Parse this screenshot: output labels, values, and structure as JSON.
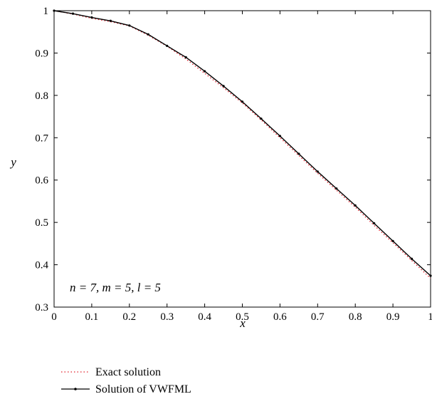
{
  "chart_data": {
    "type": "line",
    "xlabel": "x",
    "ylabel": "y",
    "xlim": [
      0,
      1
    ],
    "ylim": [
      0.3,
      1
    ],
    "xticks": [
      "0",
      "0.1",
      "0.2",
      "0.3",
      "0.4",
      "0.5",
      "0.6",
      "0.7",
      "0.8",
      "0.9",
      "1"
    ],
    "yticks": [
      "0.3",
      "0.4",
      "0.5",
      "0.6",
      "0.7",
      "0.8",
      "0.9",
      "1"
    ],
    "xtick_values": [
      0,
      0.1,
      0.2,
      0.3,
      0.4,
      0.5,
      0.6,
      0.7,
      0.8,
      0.9,
      1
    ],
    "ytick_values": [
      0.3,
      0.4,
      0.5,
      0.6,
      0.7,
      0.8,
      0.9,
      1
    ],
    "grid": false,
    "annotation": "n = 7, m = 5, l = 5",
    "legend_position": "below",
    "series": [
      {
        "name": "Exact solution",
        "style": "dotted",
        "color": "#e0202a",
        "x": [
          0,
          0.05,
          0.1,
          0.15,
          0.2,
          0.25,
          0.3,
          0.35,
          0.4,
          0.45,
          0.5,
          0.55,
          0.6,
          0.65,
          0.7,
          0.75,
          0.8,
          0.85,
          0.9,
          0.95,
          1
        ],
        "y": [
          1.0,
          0.992,
          0.982,
          0.974,
          0.964,
          0.942,
          0.916,
          0.886,
          0.852,
          0.818,
          0.782,
          0.742,
          0.7,
          0.658,
          0.616,
          0.576,
          0.536,
          0.493,
          0.452,
          0.41,
          0.368
        ]
      },
      {
        "name": "Solution of VWFML",
        "style": "solid",
        "color": "#000000",
        "x": [
          0,
          0.05,
          0.1,
          0.15,
          0.2,
          0.25,
          0.3,
          0.35,
          0.4,
          0.45,
          0.5,
          0.55,
          0.6,
          0.65,
          0.7,
          0.75,
          0.8,
          0.85,
          0.9,
          0.95,
          1
        ],
        "y": [
          1.0,
          0.993,
          0.984,
          0.976,
          0.965,
          0.944,
          0.917,
          0.89,
          0.857,
          0.822,
          0.785,
          0.745,
          0.704,
          0.662,
          0.62,
          0.58,
          0.54,
          0.498,
          0.456,
          0.414,
          0.374
        ]
      }
    ]
  }
}
